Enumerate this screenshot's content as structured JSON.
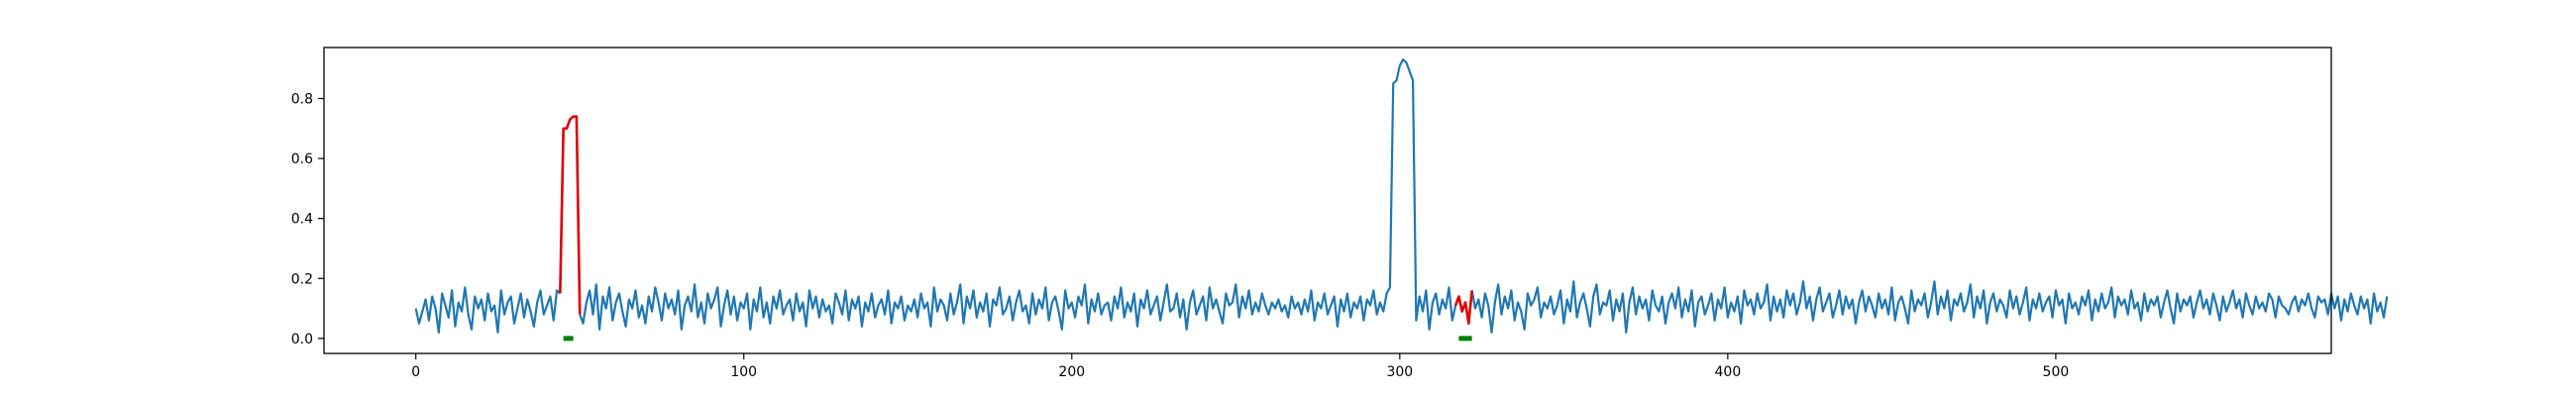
{
  "chart_data": {
    "type": "line",
    "title": "",
    "xlabel": "",
    "ylabel": "",
    "xlim": [
      -28,
      584
    ],
    "ylim": [
      -0.05,
      0.97
    ],
    "xticks": [
      0,
      100,
      200,
      300,
      400,
      500
    ],
    "xtick_labels": [
      "0",
      "100",
      "200",
      "300",
      "400",
      "500"
    ],
    "yticks": [
      0.0,
      0.2,
      0.4,
      0.6,
      0.8
    ],
    "ytick_labels": [
      "0.0",
      "0.2",
      "0.4",
      "0.6",
      "0.8"
    ],
    "grid": false,
    "legend": "none",
    "colors": {
      "signal": "#1f77b4",
      "anomaly": "#e00000",
      "marker": "#008000",
      "axes": "#000000"
    },
    "series": [
      {
        "values": [
          0.1,
          0.05,
          0.09,
          0.13,
          0.06,
          0.14,
          0.1,
          0.02,
          0.15,
          0.11,
          0.07,
          0.16,
          0.04,
          0.12,
          0.09,
          0.17,
          0.08,
          0.03,
          0.14,
          0.1,
          0.13,
          0.06,
          0.15,
          0.09,
          0.11,
          0.02,
          0.16,
          0.08,
          0.12,
          0.14,
          0.05,
          0.1,
          0.15,
          0.07,
          0.13,
          0.09,
          0.04,
          0.12,
          0.16,
          0.08,
          0.11,
          0.14,
          0.06,
          0.16,
          0.15,
          0.7,
          0.7,
          0.73,
          0.74,
          0.74,
          0.08,
          0.05,
          0.12,
          0.16,
          0.08,
          0.18,
          0.03,
          0.14,
          0.1,
          0.17,
          0.06,
          0.12,
          0.15,
          0.09,
          0.04,
          0.13,
          0.1,
          0.16,
          0.07,
          0.11,
          0.05,
          0.14,
          0.09,
          0.17,
          0.12,
          0.06,
          0.15,
          0.1,
          0.13,
          0.08,
          0.16,
          0.03,
          0.11,
          0.14,
          0.09,
          0.18,
          0.07,
          0.12,
          0.05,
          0.15,
          0.1,
          0.13,
          0.17,
          0.04,
          0.11,
          0.16,
          0.08,
          0.14,
          0.06,
          0.12,
          0.1,
          0.15,
          0.03,
          0.13,
          0.09,
          0.17,
          0.07,
          0.12,
          0.05,
          0.14,
          0.1,
          0.16,
          0.08,
          0.11,
          0.13,
          0.06,
          0.15,
          0.09,
          0.12,
          0.04,
          0.16,
          0.1,
          0.14,
          0.07,
          0.13,
          0.09,
          0.11,
          0.05,
          0.15,
          0.12,
          0.08,
          0.16,
          0.06,
          0.13,
          0.1,
          0.14,
          0.04,
          0.12,
          0.09,
          0.15,
          0.07,
          0.11,
          0.13,
          0.08,
          0.16,
          0.05,
          0.12,
          0.1,
          0.14,
          0.06,
          0.11,
          0.09,
          0.13,
          0.07,
          0.15,
          0.1,
          0.12,
          0.04,
          0.17,
          0.09,
          0.13,
          0.11,
          0.06,
          0.15,
          0.08,
          0.12,
          0.18,
          0.05,
          0.14,
          0.1,
          0.16,
          0.07,
          0.12,
          0.09,
          0.15,
          0.04,
          0.13,
          0.11,
          0.17,
          0.08,
          0.1,
          0.14,
          0.06,
          0.12,
          0.16,
          0.09,
          0.11,
          0.05,
          0.15,
          0.08,
          0.13,
          0.1,
          0.17,
          0.06,
          0.12,
          0.14,
          0.09,
          0.03,
          0.16,
          0.1,
          0.12,
          0.07,
          0.14,
          0.11,
          0.18,
          0.05,
          0.13,
          0.09,
          0.15,
          0.08,
          0.11,
          0.12,
          0.06,
          0.14,
          0.1,
          0.17,
          0.07,
          0.12,
          0.09,
          0.15,
          0.04,
          0.13,
          0.1,
          0.16,
          0.08,
          0.11,
          0.14,
          0.06,
          0.12,
          0.18,
          0.09,
          0.1,
          0.15,
          0.07,
          0.13,
          0.03,
          0.12,
          0.16,
          0.08,
          0.11,
          0.14,
          0.06,
          0.17,
          0.1,
          0.13,
          0.09,
          0.05,
          0.15,
          0.11,
          0.12,
          0.18,
          0.07,
          0.14,
          0.1,
          0.16,
          0.08,
          0.12,
          0.09,
          0.15,
          0.11,
          0.08,
          0.12,
          0.1,
          0.13,
          0.09,
          0.11,
          0.07,
          0.14,
          0.1,
          0.12,
          0.08,
          0.13,
          0.09,
          0.16,
          0.06,
          0.12,
          0.1,
          0.15,
          0.08,
          0.11,
          0.14,
          0.04,
          0.13,
          0.09,
          0.15,
          0.07,
          0.12,
          0.1,
          0.14,
          0.06,
          0.13,
          0.11,
          0.16,
          0.08,
          0.12,
          0.09,
          0.15,
          0.17,
          0.85,
          0.86,
          0.91,
          0.93,
          0.92,
          0.89,
          0.86,
          0.06,
          0.14,
          0.09,
          0.16,
          0.03,
          0.12,
          0.15,
          0.08,
          0.13,
          0.1,
          0.17,
          0.06,
          0.11,
          0.14,
          0.09,
          0.12,
          0.05,
          0.16,
          0.1,
          0.13,
          0.07,
          0.15,
          0.11,
          0.02,
          0.12,
          0.18,
          0.08,
          0.14,
          0.1,
          0.16,
          0.06,
          0.12,
          0.09,
          0.03,
          0.15,
          0.11,
          0.13,
          0.17,
          0.07,
          0.12,
          0.1,
          0.14,
          0.08,
          0.11,
          0.16,
          0.05,
          0.13,
          0.09,
          0.19,
          0.07,
          0.12,
          0.15,
          0.1,
          0.04,
          0.14,
          0.18,
          0.08,
          0.12,
          0.11,
          0.16,
          0.06,
          0.13,
          0.09,
          0.15,
          0.02,
          0.12,
          0.17,
          0.08,
          0.14,
          0.1,
          0.13,
          0.06,
          0.16,
          0.11,
          0.09,
          0.14,
          0.05,
          0.12,
          0.15,
          0.1,
          0.17,
          0.07,
          0.13,
          0.09,
          0.16,
          0.04,
          0.12,
          0.14,
          0.08,
          0.11,
          0.15,
          0.06,
          0.13,
          0.1,
          0.17,
          0.07,
          0.12,
          0.09,
          0.14,
          0.05,
          0.16,
          0.11,
          0.13,
          0.08,
          0.15,
          0.1,
          0.12,
          0.18,
          0.06,
          0.14,
          0.09,
          0.13,
          0.07,
          0.16,
          0.11,
          0.15,
          0.08,
          0.12,
          0.19,
          0.1,
          0.14,
          0.06,
          0.13,
          0.17,
          0.09,
          0.12,
          0.15,
          0.07,
          0.11,
          0.16,
          0.08,
          0.14,
          0.1,
          0.13,
          0.05,
          0.12,
          0.16,
          0.09,
          0.14,
          0.11,
          0.07,
          0.15,
          0.1,
          0.13,
          0.08,
          0.17,
          0.06,
          0.12,
          0.14,
          0.1,
          0.05,
          0.16,
          0.09,
          0.13,
          0.11,
          0.15,
          0.07,
          0.12,
          0.19,
          0.08,
          0.14,
          0.1,
          0.16,
          0.06,
          0.13,
          0.11,
          0.15,
          0.09,
          0.12,
          0.18,
          0.07,
          0.14,
          0.1,
          0.16,
          0.05,
          0.12,
          0.15,
          0.09,
          0.13,
          0.11,
          0.07,
          0.16,
          0.1,
          0.14,
          0.08,
          0.12,
          0.17,
          0.06,
          0.13,
          0.1,
          0.15,
          0.09,
          0.12,
          0.14,
          0.07,
          0.16,
          0.11,
          0.13,
          0.05,
          0.15,
          0.1,
          0.12,
          0.08,
          0.14,
          0.11,
          0.16,
          0.06,
          0.13,
          0.09,
          0.15,
          0.1,
          0.12,
          0.17,
          0.07,
          0.14,
          0.11,
          0.13,
          0.08,
          0.16,
          0.1,
          0.12,
          0.06,
          0.15,
          0.09,
          0.13,
          0.11,
          0.14,
          0.07,
          0.12,
          0.16,
          0.1,
          0.05,
          0.15,
          0.09,
          0.13,
          0.11,
          0.14,
          0.07,
          0.12,
          0.16,
          0.1,
          0.13,
          0.08,
          0.15,
          0.11,
          0.06,
          0.14,
          0.09,
          0.12,
          0.16,
          0.1,
          0.13,
          0.07,
          0.15,
          0.11,
          0.08,
          0.14,
          0.1,
          0.12,
          0.09,
          0.15,
          0.13,
          0.07,
          0.14,
          0.11,
          0.1,
          0.08,
          0.12,
          0.14,
          0.09,
          0.13,
          0.11,
          0.15,
          0.1,
          0.07,
          0.14,
          0.12,
          0.13,
          0.08,
          0.15,
          0.1,
          0.14,
          0.06,
          0.13,
          0.09,
          0.15,
          0.11,
          0.08,
          0.14,
          0.1,
          0.13,
          0.05,
          0.15,
          0.09,
          0.12,
          0.07,
          0.14
        ]
      }
    ],
    "anomaly_ranges": [
      [
        44,
        50
      ],
      [
        317,
        322
      ]
    ],
    "detected_ranges": [
      [
        45,
        48
      ],
      [
        318,
        322
      ]
    ]
  }
}
